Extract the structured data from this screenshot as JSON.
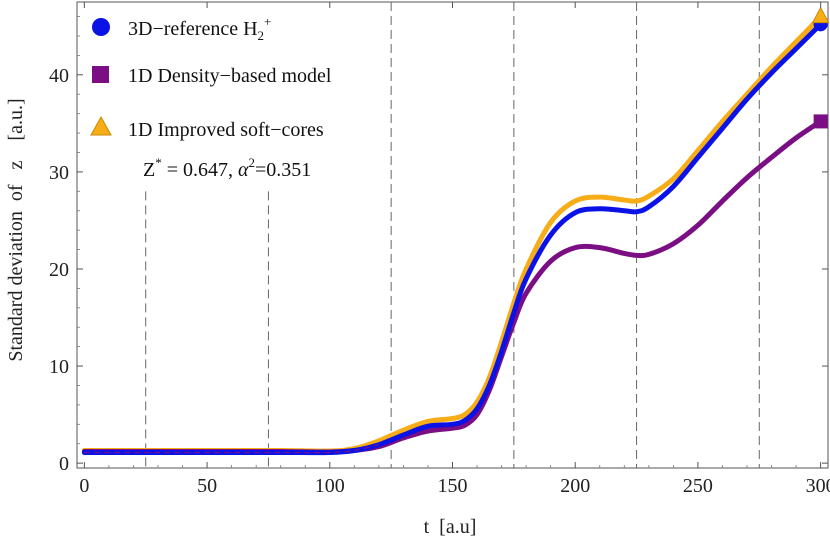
{
  "chart_data": {
    "type": "line",
    "title": "",
    "xlabel": "t  [a.u]",
    "ylabel": "Standard deviation  of   z    [a.u.]",
    "xlim": [
      -3,
      303
    ],
    "ylim": [
      -0.5,
      47.5
    ],
    "xticks": [
      0,
      50,
      100,
      150,
      200,
      250,
      300
    ],
    "yticks": [
      0,
      10,
      20,
      30,
      40
    ],
    "vlines": [
      25,
      75,
      125,
      175,
      225,
      275
    ],
    "legend": {
      "position": "top-left",
      "entries": [
        {
          "prefix": "3D−reference H",
          "sub": "2",
          "sup": "+"
        },
        {
          "text": "1D Density−based model"
        },
        {
          "text": "1D Improved soft−cores"
        }
      ],
      "annotation": {
        "z_part": "Z",
        "z_sup": "*",
        "z_val": " = 0.647, ",
        "a_part": "α",
        "a_sup": "2",
        "a_val": "=0.351"
      }
    },
    "series": [
      {
        "name": "3D-reference H2+",
        "color": "#0a12e6",
        "marker": "circle",
        "x": [
          0,
          20,
          40,
          60,
          80,
          100,
          110,
          120,
          130,
          140,
          150,
          155,
          160,
          165,
          170,
          175,
          180,
          190,
          200,
          210,
          220,
          225,
          230,
          240,
          250,
          260,
          270,
          280,
          290,
          300
        ],
        "values": [
          1.1,
          1.1,
          1.1,
          1.1,
          1.1,
          1.1,
          1.3,
          1.9,
          2.9,
          3.8,
          4.0,
          4.4,
          5.6,
          8.0,
          11.5,
          15.5,
          19.0,
          23.5,
          25.8,
          26.2,
          26.0,
          25.9,
          26.4,
          28.5,
          31.5,
          34.5,
          37.5,
          40.2,
          42.7,
          45.2
        ]
      },
      {
        "name": "1D Density-based model",
        "color": "#7b0e84",
        "marker": "square",
        "x": [
          0,
          20,
          40,
          60,
          80,
          100,
          110,
          120,
          130,
          140,
          150,
          155,
          160,
          165,
          170,
          175,
          180,
          190,
          200,
          210,
          220,
          225,
          230,
          240,
          250,
          260,
          270,
          280,
          290,
          300
        ],
        "values": [
          1.2,
          1.2,
          1.2,
          1.2,
          1.2,
          1.15,
          1.3,
          1.7,
          2.6,
          3.3,
          3.6,
          3.9,
          5.0,
          7.5,
          11.0,
          14.5,
          17.5,
          20.8,
          22.2,
          22.2,
          21.6,
          21.4,
          21.5,
          22.6,
          24.5,
          27.0,
          29.4,
          31.5,
          33.5,
          35.2
        ]
      },
      {
        "name": "1D Improved soft-cores",
        "color": "#f7ad17",
        "marker": "triangle",
        "x": [
          0,
          20,
          40,
          60,
          80,
          100,
          110,
          120,
          130,
          140,
          150,
          155,
          160,
          165,
          170,
          175,
          180,
          190,
          200,
          210,
          220,
          225,
          230,
          240,
          250,
          260,
          270,
          280,
          290,
          300
        ],
        "values": [
          1.3,
          1.3,
          1.3,
          1.3,
          1.3,
          1.25,
          1.5,
          2.3,
          3.4,
          4.3,
          4.6,
          5.0,
          6.3,
          8.8,
          12.5,
          16.5,
          20.0,
          24.8,
          27.0,
          27.4,
          27.1,
          27.0,
          27.5,
          29.3,
          32.2,
          35.2,
          38.0,
          40.8,
          43.4,
          46.0
        ]
      }
    ]
  }
}
